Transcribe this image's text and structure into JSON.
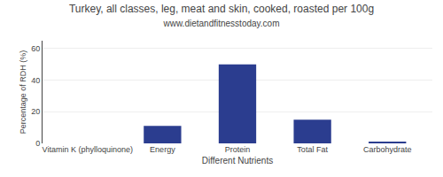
{
  "chart_data": {
    "type": "bar",
    "title": "Turkey, all classes, leg, meat and skin, cooked, roasted per 100g",
    "subtitle": "www.dietandfitnesstoday.com",
    "xlabel": "Different Nutrients",
    "ylabel": "Percentage of RDH (%)",
    "categories": [
      "Vitamin K (phylloquinone)",
      "Energy",
      "Protein",
      "Total Fat",
      "Carbohydrate"
    ],
    "values": [
      0,
      11,
      50,
      15,
      1
    ],
    "color": "#2b3d8f",
    "ylim": [
      0,
      65
    ],
    "yticks": [
      0,
      20,
      40,
      60
    ],
    "grid": true
  }
}
